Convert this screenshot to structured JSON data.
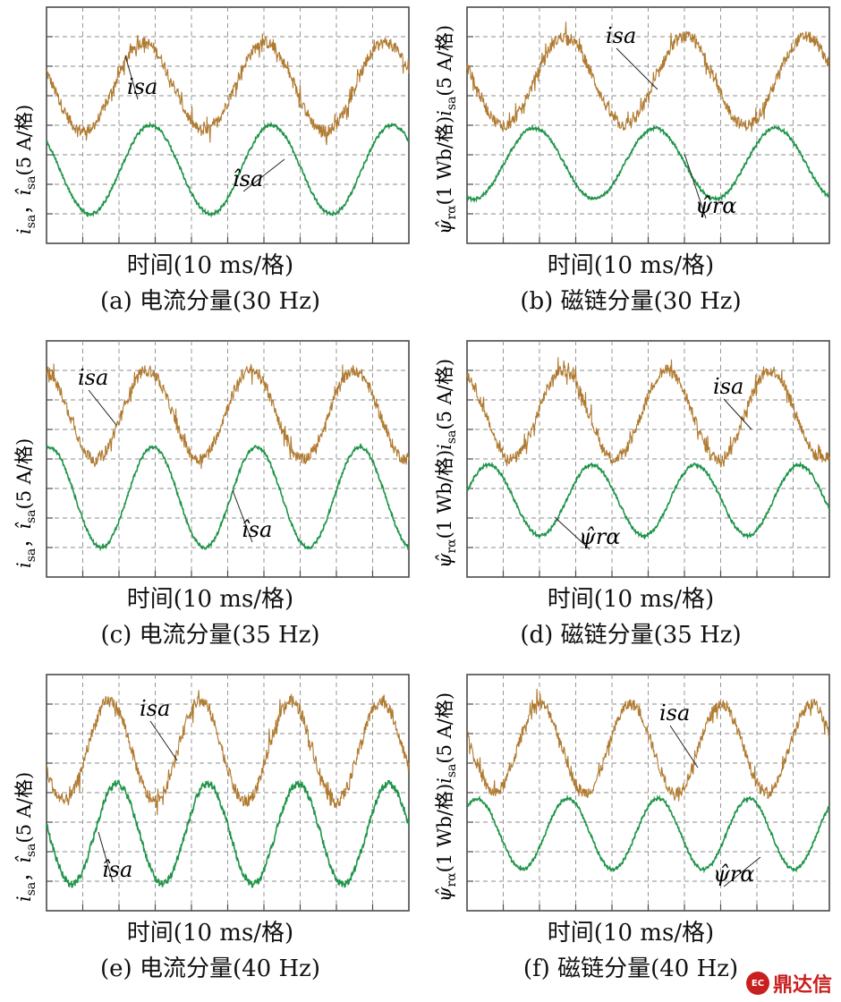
{
  "colors": {
    "current": "#b07a30",
    "estimate": "#1e9448",
    "grid": "#8c8c8c",
    "frame": "#4a4a4a",
    "logo": "#c8201f"
  },
  "chart_data": [
    {
      "id": "a",
      "type": "line",
      "kind": "current",
      "frequency_hz": 30,
      "xlabel": "时间(10 ms/格)",
      "caption": "(a) 电流分量(30 Hz)",
      "ylabel_parts": [
        "i",
        "sa",
        "，",
        "î",
        "sa",
        "(5 A/格)"
      ],
      "series": [
        {
          "name": "i_sa",
          "label": "isa",
          "amplitude_div": 1.5,
          "offset_div": 1.3,
          "phase_deg": 160,
          "noise_div": 0.2
        },
        {
          "name": "î_sa",
          "label": "îsa",
          "amplitude_div": 1.5,
          "offset_div": -1.5,
          "phase_deg": 140,
          "noise_div": 0.05
        }
      ]
    },
    {
      "id": "b",
      "type": "line",
      "kind": "flux",
      "frequency_hz": 30,
      "xlabel": "时间(10 ms/格)",
      "caption": "(b) 磁链分量(30 Hz)",
      "ylabel_parts": [
        "ψ̂",
        "rα",
        "(1 Wb/格)",
        "i",
        "sa",
        "(5 A/格)"
      ],
      "series": [
        {
          "name": "i_sa",
          "label": "isa",
          "amplitude_div": 1.5,
          "offset_div": 1.5,
          "phase_deg": 160,
          "noise_div": 0.2
        },
        {
          "name": "ψ̂_rα",
          "label": "ψ̂rα",
          "amplitude_div": 1.2,
          "offset_div": -1.3,
          "phase_deg": 250,
          "noise_div": 0.05
        }
      ]
    },
    {
      "id": "c",
      "type": "line",
      "kind": "current",
      "frequency_hz": 35,
      "xlabel": "时间(10 ms/格)",
      "caption": "(c) 电流分量(35 Hz)",
      "ylabel_parts": [
        "i",
        "sa",
        "，",
        "î",
        "sa",
        "(5 A/格)"
      ],
      "series": [
        {
          "name": "i_sa",
          "label": "isa",
          "amplitude_div": 1.5,
          "offset_div": 1.5,
          "phase_deg": 100,
          "noise_div": 0.2
        },
        {
          "name": "î_sa",
          "label": "îsa",
          "amplitude_div": 1.7,
          "offset_div": -1.3,
          "phase_deg": 80,
          "noise_div": 0.05
        }
      ]
    },
    {
      "id": "d",
      "type": "line",
      "kind": "flux",
      "frequency_hz": 35,
      "xlabel": "时间(10 ms/格)",
      "caption": "(d) 磁链分量(35 Hz)",
      "ylabel_parts": [
        "ψ̂",
        "rα",
        "(1 Wb/格)",
        "i",
        "sa",
        "(5 A/格)"
      ],
      "series": [
        {
          "name": "i_sa",
          "label": "isa",
          "amplitude_div": 1.5,
          "offset_div": 1.5,
          "phase_deg": 115,
          "noise_div": 0.2
        },
        {
          "name": "ψ̂_rα",
          "label": "ψ̂rα",
          "amplitude_div": 1.2,
          "offset_div": -1.4,
          "phase_deg": 15,
          "noise_div": 0.05
        }
      ]
    },
    {
      "id": "e",
      "type": "line",
      "kind": "current",
      "frequency_hz": 40,
      "xlabel": "时间(10 ms/格)",
      "caption": "(e) 电流分量(40 Hz)",
      "ylabel_parts": [
        "i",
        "sa",
        "，",
        "î",
        "sa",
        "(5 A/格)"
      ],
      "series": [
        {
          "name": "i_sa",
          "label": "isa",
          "amplitude_div": 1.7,
          "offset_div": 1.4,
          "phase_deg": 200,
          "noise_div": 0.22
        },
        {
          "name": "î_sa",
          "label": "îsa",
          "amplitude_div": 1.7,
          "offset_div": -1.4,
          "phase_deg": 170,
          "noise_div": 0.1
        }
      ]
    },
    {
      "id": "f",
      "type": "line",
      "kind": "flux",
      "frequency_hz": 40,
      "xlabel": "时间(10 ms/格)",
      "caption": "(f) 磁链分量(40 Hz)",
      "ylabel_parts": [
        "ψ̂",
        "rα",
        "(1 Wb/格)",
        "i",
        "sa",
        "(5 A/格)"
      ],
      "series": [
        {
          "name": "i_sa",
          "label": "isa",
          "amplitude_div": 1.5,
          "offset_div": 1.5,
          "phase_deg": 160,
          "noise_div": 0.2
        },
        {
          "name": "ψ̂_rα",
          "label": "ψ̂rα",
          "amplitude_div": 1.2,
          "offset_div": -1.4,
          "phase_deg": 50,
          "noise_div": 0.05
        }
      ]
    }
  ],
  "watermark": {
    "text": "鼎达信",
    "mark": "EC"
  }
}
